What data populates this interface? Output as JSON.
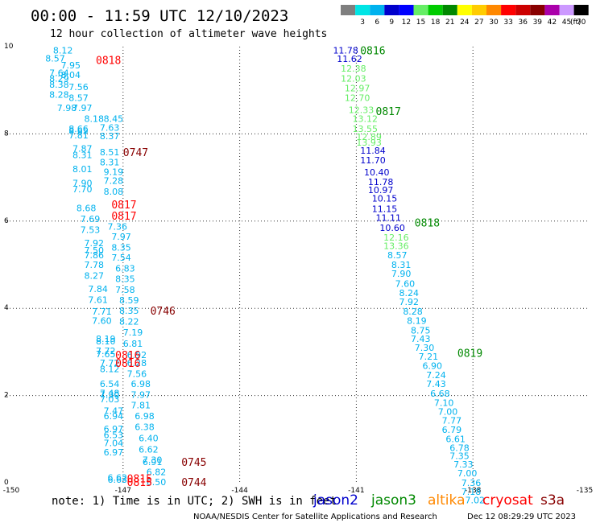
{
  "header": {
    "title": "00:00 - 11:59 UTC 12/10/2023",
    "subtitle": "12 hour collection of altimeter wave heights",
    "scale_unit": "(ft)"
  },
  "color_scale": [
    {
      "label": "",
      "color": "#7f7f7f"
    },
    {
      "label": "3",
      "color": "#00e5e5"
    },
    {
      "label": "6",
      "color": "#00b2ee"
    },
    {
      "label": "9",
      "color": "#0000cc"
    },
    {
      "label": "12",
      "color": "#0000ff"
    },
    {
      "label": "15",
      "color": "#66ee66"
    },
    {
      "label": "18",
      "color": "#00cc00"
    },
    {
      "label": "21",
      "color": "#008800"
    },
    {
      "label": "24",
      "color": "#ffff00"
    },
    {
      "label": "27",
      "color": "#ffcc00"
    },
    {
      "label": "30",
      "color": "#ff8800"
    },
    {
      "label": "33",
      "color": "#ff0000"
    },
    {
      "label": "36",
      "color": "#cc0000"
    },
    {
      "label": "39",
      "color": "#880000"
    },
    {
      "label": "42",
      "color": "#aa00aa"
    },
    {
      "label": "45",
      "color": "#cc99ff"
    },
    {
      "label": "70",
      "color": "#000000"
    }
  ],
  "footer": {
    "note": "note: 1) Time is in UTC; 2) SWH is in feet",
    "credit": "NOAA/NESDIS Center for Satellite Applications and Research",
    "timestamp": "Dec 12 08:29:29 UTC 2023"
  },
  "satellites": [
    {
      "name": "jason2",
      "color": "#0000cc"
    },
    {
      "name": "jason3",
      "color": "#008800"
    },
    {
      "name": "altika",
      "color": "#ff8800"
    },
    {
      "name": "cryosat",
      "color": "#ff0000"
    },
    {
      "name": "s3a",
      "color": "#880000"
    }
  ],
  "chart_data": {
    "type": "scatter",
    "xlim": [
      -150,
      -135
    ],
    "ylim": [
      0,
      10
    ],
    "x_ticks": [
      "-150",
      "-147",
      "-144",
      "-141",
      "-138",
      "-135"
    ],
    "y_ticks": [
      "0",
      "2",
      "4",
      "6",
      "8",
      "10"
    ],
    "grid": true,
    "tracks": [
      {
        "satellite": "s3a",
        "color": "#00b2ee",
        "time_labels": [
          {
            "text": "0747",
            "lon": -147.0,
            "lat": 7.58,
            "color": "#880000"
          },
          {
            "text": "0746",
            "lon": -146.3,
            "lat": 3.95,
            "color": "#880000"
          },
          {
            "text": "0745",
            "lon": -145.5,
            "lat": 0.48,
            "color": "#880000"
          },
          {
            "text": "0744",
            "lon": -145.5,
            "lat": 0.02,
            "color": "#880000"
          }
        ],
        "points": [
          {
            "lon": -147.5,
            "lat": 8.35,
            "v": "8.45"
          },
          {
            "lon": -147.6,
            "lat": 8.15,
            "v": "7.63"
          },
          {
            "lon": -147.6,
            "lat": 7.95,
            "v": "8.37"
          },
          {
            "lon": -147.6,
            "lat": 7.58,
            "v": "8.51"
          },
          {
            "lon": -147.6,
            "lat": 7.35,
            "v": "8.31"
          },
          {
            "lon": -147.5,
            "lat": 7.13,
            "v": "9.19"
          },
          {
            "lon": -147.5,
            "lat": 6.93,
            "v": "7.28"
          },
          {
            "lon": -147.5,
            "lat": 6.68,
            "v": "8.08"
          },
          {
            "lon": -147.4,
            "lat": 5.88,
            "v": "7.36"
          },
          {
            "lon": -147.3,
            "lat": 5.65,
            "v": "7.97"
          },
          {
            "lon": -147.3,
            "lat": 5.4,
            "v": "8.35"
          },
          {
            "lon": -147.3,
            "lat": 5.17,
            "v": "7.54"
          },
          {
            "lon": -147.2,
            "lat": 4.92,
            "v": "6.83"
          },
          {
            "lon": -147.2,
            "lat": 4.68,
            "v": "8.35"
          },
          {
            "lon": -147.2,
            "lat": 4.43,
            "v": "7.58"
          },
          {
            "lon": -147.1,
            "lat": 4.19,
            "v": "8.59"
          },
          {
            "lon": -147.1,
            "lat": 3.95,
            "v": "8.35"
          },
          {
            "lon": -147.1,
            "lat": 3.7,
            "v": "8.22"
          },
          {
            "lon": -147.0,
            "lat": 3.45,
            "v": "7.19"
          },
          {
            "lon": -147.0,
            "lat": 3.19,
            "v": "6.81"
          },
          {
            "lon": -146.9,
            "lat": 2.93,
            "v": "6.92"
          },
          {
            "lon": -146.9,
            "lat": 2.75,
            "v": "6.28"
          },
          {
            "lon": -146.9,
            "lat": 2.5,
            "v": "7.56"
          },
          {
            "lon": -146.8,
            "lat": 2.27,
            "v": "6.98"
          },
          {
            "lon": -146.8,
            "lat": 2.02,
            "v": "7.97"
          },
          {
            "lon": -146.8,
            "lat": 1.78,
            "v": "7.81"
          },
          {
            "lon": -146.7,
            "lat": 1.53,
            "v": "6.98"
          },
          {
            "lon": -146.7,
            "lat": 1.28,
            "v": "6.38"
          },
          {
            "lon": -146.6,
            "lat": 1.02,
            "v": "6.40"
          },
          {
            "lon": -146.6,
            "lat": 0.77,
            "v": "6.62"
          },
          {
            "lon": -146.5,
            "lat": 0.53,
            "v": "7.30"
          },
          {
            "lon": -146.5,
            "lat": 0.48,
            "v": "6.91"
          },
          {
            "lon": -146.4,
            "lat": 0.25,
            "v": "6.82"
          },
          {
            "lon": -146.4,
            "lat": 0.02,
            "v": "6.50"
          }
        ]
      },
      {
        "satellite": "cryosat",
        "color": "#00b2ee",
        "time_labels": [
          {
            "text": "0818",
            "lon": -147.7,
            "lat": 9.7,
            "color": "#ff0000"
          },
          {
            "text": "0817",
            "lon": -147.3,
            "lat": 6.38,
            "color": "#ff0000"
          },
          {
            "text": "0817",
            "lon": -147.3,
            "lat": 6.13,
            "color": "#ff0000"
          },
          {
            "text": "0816",
            "lon": -147.2,
            "lat": 2.93,
            "color": "#ff0000"
          },
          {
            "text": "0816",
            "lon": -147.2,
            "lat": 2.75,
            "color": "#ff0000"
          },
          {
            "text": "0815",
            "lon": -146.9,
            "lat": 0.1,
            "color": "#ff0000"
          },
          {
            "text": "0815",
            "lon": -146.9,
            "lat": 0.02,
            "color": "#ff0000"
          }
        ],
        "points": [
          {
            "lon": -148.8,
            "lat": 9.92,
            "v": "8.12"
          },
          {
            "lon": -149.0,
            "lat": 9.73,
            "v": "8.57"
          },
          {
            "lon": -148.6,
            "lat": 9.58,
            "v": "7.95"
          },
          {
            "lon": -148.9,
            "lat": 9.4,
            "v": "7.64"
          },
          {
            "lon": -148.6,
            "lat": 9.35,
            "v": "8.04"
          },
          {
            "lon": -148.9,
            "lat": 9.27,
            "v": "8.29"
          },
          {
            "lon": -148.9,
            "lat": 9.13,
            "v": "8.38"
          },
          {
            "lon": -148.4,
            "lat": 9.08,
            "v": "7.56"
          },
          {
            "lon": -148.9,
            "lat": 8.9,
            "v": "8.28"
          },
          {
            "lon": -148.4,
            "lat": 8.83,
            "v": "8.57"
          },
          {
            "lon": -148.7,
            "lat": 8.6,
            "v": "7.98"
          },
          {
            "lon": -148.3,
            "lat": 8.6,
            "v": "7.97"
          },
          {
            "lon": -148.0,
            "lat": 8.35,
            "v": "8.18"
          },
          {
            "lon": -148.4,
            "lat": 8.12,
            "v": "8.66"
          },
          {
            "lon": -148.4,
            "lat": 8.07,
            "v": "8.65"
          },
          {
            "lon": -148.4,
            "lat": 7.97,
            "v": "7.81"
          },
          {
            "lon": -148.3,
            "lat": 7.67,
            "v": "7.87"
          },
          {
            "lon": -148.3,
            "lat": 7.52,
            "v": "8.31"
          },
          {
            "lon": -148.3,
            "lat": 7.2,
            "v": "8.01"
          },
          {
            "lon": -148.3,
            "lat": 6.87,
            "v": "7.90"
          },
          {
            "lon": -148.3,
            "lat": 6.73,
            "v": "7.70"
          },
          {
            "lon": -148.2,
            "lat": 6.3,
            "v": "8.68"
          },
          {
            "lon": -148.1,
            "lat": 6.05,
            "v": "7.69"
          },
          {
            "lon": -148.1,
            "lat": 5.8,
            "v": "7.53"
          },
          {
            "lon": -148.0,
            "lat": 5.5,
            "v": "7.92"
          },
          {
            "lon": -148.0,
            "lat": 5.33,
            "v": "7.50"
          },
          {
            "lon": -148.0,
            "lat": 5.22,
            "v": "7.86"
          },
          {
            "lon": -148.0,
            "lat": 5.0,
            "v": "7.78"
          },
          {
            "lon": -148.0,
            "lat": 4.75,
            "v": "8.27"
          },
          {
            "lon": -147.9,
            "lat": 4.45,
            "v": "7.84"
          },
          {
            "lon": -147.9,
            "lat": 4.2,
            "v": "7.61"
          },
          {
            "lon": -147.8,
            "lat": 3.93,
            "v": "7.71"
          },
          {
            "lon": -147.8,
            "lat": 3.72,
            "v": "7.60"
          },
          {
            "lon": -147.7,
            "lat": 3.3,
            "v": "8.19"
          },
          {
            "lon": -147.7,
            "lat": 3.25,
            "v": "8.10"
          },
          {
            "lon": -147.7,
            "lat": 3.03,
            "v": "7.72"
          },
          {
            "lon": -147.7,
            "lat": 2.95,
            "v": "7.65"
          },
          {
            "lon": -147.6,
            "lat": 2.75,
            "v": "7.72"
          },
          {
            "lon": -147.6,
            "lat": 2.61,
            "v": "8.12"
          },
          {
            "lon": -147.6,
            "lat": 2.27,
            "v": "6.54"
          },
          {
            "lon": -147.6,
            "lat": 2.06,
            "v": "7.48"
          },
          {
            "lon": -147.6,
            "lat": 2.02,
            "v": "7.30"
          },
          {
            "lon": -147.6,
            "lat": 1.92,
            "v": "7.03"
          },
          {
            "lon": -147.5,
            "lat": 1.65,
            "v": "7.47"
          },
          {
            "lon": -147.5,
            "lat": 1.53,
            "v": "6.94"
          },
          {
            "lon": -147.5,
            "lat": 1.24,
            "v": "6.97"
          },
          {
            "lon": -147.5,
            "lat": 1.1,
            "v": "6.53"
          },
          {
            "lon": -147.5,
            "lat": 0.91,
            "v": "7.04"
          },
          {
            "lon": -147.5,
            "lat": 0.7,
            "v": "6.97"
          },
          {
            "lon": -147.4,
            "lat": 0.12,
            "v": "6.62"
          },
          {
            "lon": -147.4,
            "lat": 0.07,
            "v": "6.63"
          }
        ]
      },
      {
        "satellite": "jason3",
        "color": "#00b2ee",
        "time_labels": [
          {
            "text": "0816",
            "lon": -140.9,
            "lat": 9.92,
            "color": "#008800"
          },
          {
            "text": "0817",
            "lon": -140.5,
            "lat": 8.52,
            "color": "#008800"
          },
          {
            "text": "0818",
            "lon": -139.5,
            "lat": 5.97,
            "color": "#008800"
          },
          {
            "text": "0819",
            "lon": -138.4,
            "lat": 2.98,
            "color": "#008800"
          }
        ],
        "points": [
          {
            "lon": -141.6,
            "lat": 9.92,
            "v": "11.78",
            "c": "#0000cc"
          },
          {
            "lon": -141.5,
            "lat": 9.72,
            "v": "11.62",
            "c": "#0000cc"
          },
          {
            "lon": -141.4,
            "lat": 9.5,
            "v": "12.38",
            "c": "#66ee66"
          },
          {
            "lon": -141.4,
            "lat": 9.27,
            "v": "12.03",
            "c": "#66ee66"
          },
          {
            "lon": -141.3,
            "lat": 9.05,
            "v": "12.97",
            "c": "#66ee66"
          },
          {
            "lon": -141.3,
            "lat": 8.83,
            "v": "12.70",
            "c": "#66ee66"
          },
          {
            "lon": -141.2,
            "lat": 8.55,
            "v": "12.33",
            "c": "#66ee66"
          },
          {
            "lon": -141.1,
            "lat": 8.35,
            "v": "13.12",
            "c": "#66ee66"
          },
          {
            "lon": -141.1,
            "lat": 8.12,
            "v": "13.55",
            "c": "#66ee66"
          },
          {
            "lon": -141.0,
            "lat": 7.93,
            "v": "12.89",
            "c": "#66ee66"
          },
          {
            "lon": -141.0,
            "lat": 7.8,
            "v": "13.93",
            "c": "#66ee66"
          },
          {
            "lon": -140.9,
            "lat": 7.62,
            "v": "11.84",
            "c": "#0000cc"
          },
          {
            "lon": -140.9,
            "lat": 7.4,
            "v": "11.70",
            "c": "#0000cc"
          },
          {
            "lon": -140.8,
            "lat": 7.12,
            "v": "10.40",
            "c": "#0000cc"
          },
          {
            "lon": -140.7,
            "lat": 6.9,
            "v": "11.78",
            "c": "#0000cc"
          },
          {
            "lon": -140.7,
            "lat": 6.72,
            "v": "10.97",
            "c": "#0000cc"
          },
          {
            "lon": -140.6,
            "lat": 6.52,
            "v": "10.15",
            "c": "#0000cc"
          },
          {
            "lon": -140.6,
            "lat": 6.28,
            "v": "11.15",
            "c": "#0000cc"
          },
          {
            "lon": -140.5,
            "lat": 6.08,
            "v": "11.11",
            "c": "#0000cc"
          },
          {
            "lon": -140.4,
            "lat": 5.85,
            "v": "10.60",
            "c": "#0000cc"
          },
          {
            "lon": -140.3,
            "lat": 5.63,
            "v": "12.16",
            "c": "#66ee66"
          },
          {
            "lon": -140.3,
            "lat": 5.43,
            "v": "13.36",
            "c": "#66ee66"
          },
          {
            "lon": -140.2,
            "lat": 5.22,
            "v": "8.57"
          },
          {
            "lon": -140.1,
            "lat": 5.0,
            "v": "8.31"
          },
          {
            "lon": -140.1,
            "lat": 4.8,
            "v": "7.90"
          },
          {
            "lon": -140.0,
            "lat": 4.57,
            "v": "7.60"
          },
          {
            "lon": -139.9,
            "lat": 4.35,
            "v": "8.24"
          },
          {
            "lon": -139.9,
            "lat": 4.15,
            "v": "7.92"
          },
          {
            "lon": -139.8,
            "lat": 3.93,
            "v": "8.28"
          },
          {
            "lon": -139.7,
            "lat": 3.72,
            "v": "8.19"
          },
          {
            "lon": -139.6,
            "lat": 3.5,
            "v": "8.75"
          },
          {
            "lon": -139.6,
            "lat": 3.3,
            "v": "7.43"
          },
          {
            "lon": -139.5,
            "lat": 3.1,
            "v": "7.30"
          },
          {
            "lon": -139.4,
            "lat": 2.9,
            "v": "7.21"
          },
          {
            "lon": -139.3,
            "lat": 2.68,
            "v": "6.90"
          },
          {
            "lon": -139.2,
            "lat": 2.47,
            "v": "7.24"
          },
          {
            "lon": -139.2,
            "lat": 2.27,
            "v": "7.43"
          },
          {
            "lon": -139.1,
            "lat": 2.05,
            "v": "6.68"
          },
          {
            "lon": -139.0,
            "lat": 1.84,
            "v": "7.10"
          },
          {
            "lon": -138.9,
            "lat": 1.63,
            "v": "7.00"
          },
          {
            "lon": -138.8,
            "lat": 1.43,
            "v": "7.77"
          },
          {
            "lon": -138.8,
            "lat": 1.22,
            "v": "6.79"
          },
          {
            "lon": -138.7,
            "lat": 1.01,
            "v": "6.61"
          },
          {
            "lon": -138.6,
            "lat": 0.8,
            "v": "6.78"
          },
          {
            "lon": -138.6,
            "lat": 0.62,
            "v": "7.35"
          },
          {
            "lon": -138.5,
            "lat": 0.42,
            "v": "7.33"
          },
          {
            "lon": -138.4,
            "lat": 0.22,
            "v": "7.00"
          },
          {
            "lon": -138.3,
            "lat": 0.0,
            "v": "7.36"
          },
          {
            "lon": -138.3,
            "lat": -0.2,
            "v": "7.18"
          },
          {
            "lon": -138.2,
            "lat": -0.4,
            "v": "7.02"
          }
        ]
      }
    ]
  }
}
